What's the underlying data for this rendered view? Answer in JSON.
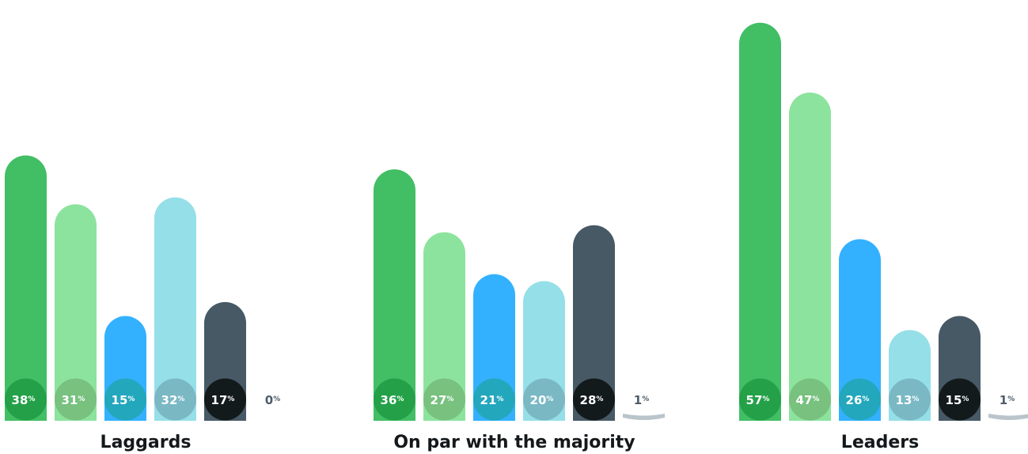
{
  "chart_data": {
    "type": "bar",
    "categories": [
      "Laggards",
      "On par with the majority",
      "Leaders"
    ],
    "series": [
      {
        "values": [
          38,
          36,
          57
        ],
        "color": "#42be65",
        "circle_color": "#24a148"
      },
      {
        "values": [
          31,
          27,
          47
        ],
        "color": "#8ce39d",
        "circle_color": "#78c17f"
      },
      {
        "values": [
          15,
          21,
          26
        ],
        "color": "#33b1ff",
        "circle_color": "#23a7bd"
      },
      {
        "values": [
          32,
          20,
          13
        ],
        "color": "#95dfe8",
        "circle_color": "#7ab8c4"
      },
      {
        "values": [
          17,
          28,
          15
        ],
        "color": "#475965",
        "circle_color": "#131a1c"
      },
      {
        "values": [
          0,
          1,
          1
        ],
        "color": "#b9c4cb",
        "circle_color": "#ffffff"
      }
    ],
    "value_suffix": "%",
    "ylim": [
      0,
      60
    ],
    "grid": false,
    "legend": "none"
  }
}
